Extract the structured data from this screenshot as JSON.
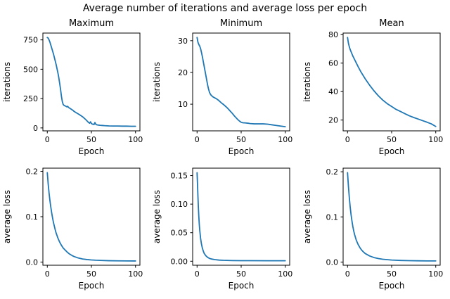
{
  "figure": {
    "title": "Average number of iterations and average loss per epoch",
    "background": "#ffffff",
    "line_color": "#1f77b4",
    "axis_color": "#000000"
  },
  "chart_data": [
    {
      "type": "line",
      "title": "Maximum",
      "xlabel": "Epoch",
      "ylabel": "iterations",
      "xlim": [
        -5,
        105
      ],
      "ylim": [
        -25,
        808
      ],
      "xticks": [
        0,
        50,
        100
      ],
      "xtick_labels": [
        "0",
        "50",
        "100"
      ],
      "yticks": [
        0,
        250,
        500,
        750
      ],
      "ytick_labels": [
        "0",
        "250",
        "500",
        "750"
      ],
      "grid": false,
      "legend": null,
      "x": [
        0,
        1,
        2,
        3,
        4,
        5,
        6,
        7,
        8,
        9,
        10,
        11,
        12,
        13,
        14,
        15,
        16,
        17,
        18,
        19,
        20,
        21,
        22,
        23,
        24,
        25,
        26,
        27,
        28,
        29,
        30,
        32,
        34,
        36,
        38,
        40,
        42,
        44,
        45,
        46,
        47,
        48,
        49,
        50,
        51,
        52,
        53,
        54,
        55,
        56,
        57,
        58,
        60,
        62,
        65,
        70,
        75,
        80,
        85,
        90,
        95,
        100
      ],
      "y": [
        770,
        765,
        750,
        730,
        705,
        680,
        655,
        630,
        600,
        570,
        540,
        505,
        470,
        430,
        380,
        330,
        270,
        225,
        200,
        192,
        188,
        185,
        180,
        184,
        175,
        170,
        165,
        160,
        155,
        150,
        143,
        133,
        124,
        115,
        105,
        95,
        82,
        68,
        60,
        52,
        45,
        40,
        52,
        38,
        33,
        31,
        29,
        46,
        31,
        27,
        25,
        24,
        22,
        21,
        19,
        17,
        16,
        16,
        15,
        15,
        14,
        14
      ],
      "series_name": "maximum iterations"
    },
    {
      "type": "line",
      "title": "Minimum",
      "xlabel": "Epoch",
      "ylabel": "iterations",
      "xlim": [
        -5,
        105
      ],
      "ylim": [
        1.6,
        32.4
      ],
      "xticks": [
        0,
        50,
        100
      ],
      "xtick_labels": [
        "0",
        "50",
        "100"
      ],
      "yticks": [
        10,
        20,
        30
      ],
      "ytick_labels": [
        "10",
        "20",
        "30"
      ],
      "grid": false,
      "legend": null,
      "x": [
        0,
        1,
        2,
        3,
        4,
        5,
        6,
        7,
        8,
        9,
        10,
        11,
        12,
        13,
        14,
        15,
        16,
        18,
        20,
        22,
        24,
        26,
        28,
        30,
        32,
        34,
        36,
        38,
        40,
        42,
        44,
        46,
        48,
        50,
        52,
        55,
        58,
        60,
        65,
        70,
        75,
        80,
        85,
        90,
        95,
        100
      ],
      "y": [
        31,
        29.5,
        28.8,
        28.3,
        27.5,
        26.3,
        25,
        23.5,
        22,
        20.5,
        19,
        17.5,
        16,
        14.8,
        13.8,
        13.2,
        12.8,
        12.3,
        12,
        11.7,
        11.3,
        10.8,
        10.3,
        9.9,
        9.4,
        8.9,
        8.3,
        7.7,
        7.1,
        6.4,
        5.8,
        5.2,
        4.7,
        4.3,
        4.15,
        4.1,
        4.0,
        3.9,
        3.8,
        3.8,
        3.8,
        3.7,
        3.5,
        3.3,
        3.1,
        2.9
      ],
      "series_name": "minimum iterations"
    },
    {
      "type": "line",
      "title": "Mean",
      "xlabel": "Epoch",
      "ylabel": "iterations",
      "xlim": [
        -5,
        105
      ],
      "ylim": [
        12.4,
        81.1
      ],
      "xticks": [
        0,
        50,
        100
      ],
      "xtick_labels": [
        "0",
        "50",
        "100"
      ],
      "yticks": [
        20,
        40,
        60,
        80
      ],
      "ytick_labels": [
        "20",
        "40",
        "60",
        "80"
      ],
      "grid": false,
      "legend": null,
      "x": [
        0,
        1,
        2,
        3,
        4,
        5,
        6,
        8,
        10,
        12,
        15,
        18,
        20,
        25,
        30,
        35,
        40,
        45,
        50,
        55,
        60,
        65,
        70,
        75,
        80,
        85,
        90,
        95,
        100
      ],
      "y": [
        78,
        74,
        71.5,
        69.5,
        68,
        66.5,
        65,
        62.5,
        60,
        57.5,
        54,
        51,
        49,
        44.5,
        40.5,
        37,
        34,
        31.5,
        29.5,
        27.5,
        26,
        24.5,
        23,
        21.8,
        20.7,
        19.6,
        18.5,
        17.3,
        15.5
      ],
      "series_name": "mean iterations"
    },
    {
      "type": "line",
      "title": "",
      "xlabel": "Epoch",
      "ylabel": "average loss",
      "xlim": [
        -5,
        105
      ],
      "ylim": [
        -0.007,
        0.207
      ],
      "xticks": [
        0,
        50,
        100
      ],
      "xtick_labels": [
        "0",
        "50",
        "100"
      ],
      "yticks": [
        0.0,
        0.1,
        0.2
      ],
      "ytick_labels": [
        "0.0",
        "0.1",
        "0.2"
      ],
      "grid": false,
      "legend": null,
      "x": [
        0,
        1,
        2,
        3,
        4,
        5,
        6,
        7,
        8,
        9,
        10,
        12,
        14,
        16,
        18,
        20,
        22,
        25,
        28,
        30,
        35,
        40,
        45,
        50,
        55,
        60,
        70,
        80,
        90,
        100
      ],
      "y": [
        0.197,
        0.172,
        0.152,
        0.135,
        0.121,
        0.108,
        0.097,
        0.087,
        0.079,
        0.071,
        0.064,
        0.053,
        0.044,
        0.037,
        0.031,
        0.027,
        0.023,
        0.018,
        0.0145,
        0.0125,
        0.009,
        0.0068,
        0.0055,
        0.0046,
        0.004,
        0.0036,
        0.003,
        0.0027,
        0.0025,
        0.0024
      ],
      "series_name": "maximum average loss"
    },
    {
      "type": "line",
      "title": "",
      "xlabel": "Epoch",
      "ylabel": "average loss",
      "xlim": [
        -5,
        105
      ],
      "ylim": [
        -0.007,
        0.163
      ],
      "xticks": [
        0,
        50,
        100
      ],
      "xtick_labels": [
        "0",
        "50",
        "100"
      ],
      "yticks": [
        0.0,
        0.05,
        0.1,
        0.15
      ],
      "ytick_labels": [
        "0.00",
        "0.05",
        "0.10",
        "0.15"
      ],
      "grid": false,
      "legend": null,
      "x": [
        0,
        0.5,
        1,
        1.5,
        2,
        2.5,
        3,
        4,
        5,
        6,
        7,
        8,
        10,
        12,
        14,
        16,
        20,
        25,
        30,
        40,
        50,
        60,
        80,
        100
      ],
      "y": [
        0.155,
        0.135,
        0.113,
        0.094,
        0.078,
        0.065,
        0.055,
        0.04,
        0.03,
        0.023,
        0.018,
        0.014,
        0.0095,
        0.0068,
        0.005,
        0.004,
        0.0028,
        0.002,
        0.0016,
        0.0012,
        0.001,
        0.001,
        0.0009,
        0.0009
      ],
      "series_name": "minimum average loss"
    },
    {
      "type": "line",
      "title": "",
      "xlabel": "Epoch",
      "ylabel": "average loss",
      "xlim": [
        -5,
        105
      ],
      "ylim": [
        -0.007,
        0.208
      ],
      "xticks": [
        0,
        50,
        100
      ],
      "xtick_labels": [
        "0",
        "50",
        "100"
      ],
      "yticks": [
        0.0,
        0.1,
        0.2
      ],
      "ytick_labels": [
        "0.0",
        "0.1",
        "0.2"
      ],
      "grid": false,
      "legend": null,
      "x": [
        0,
        1,
        2,
        3,
        4,
        5,
        6,
        7,
        8,
        10,
        12,
        14,
        16,
        18,
        20,
        25,
        30,
        35,
        40,
        50,
        60,
        70,
        80,
        90,
        100
      ],
      "y": [
        0.198,
        0.168,
        0.143,
        0.122,
        0.105,
        0.091,
        0.079,
        0.069,
        0.061,
        0.048,
        0.039,
        0.032,
        0.0265,
        0.0225,
        0.019,
        0.0135,
        0.01,
        0.0078,
        0.0063,
        0.0045,
        0.0036,
        0.0031,
        0.0028,
        0.0026,
        0.0025
      ],
      "series_name": "mean average loss"
    }
  ]
}
